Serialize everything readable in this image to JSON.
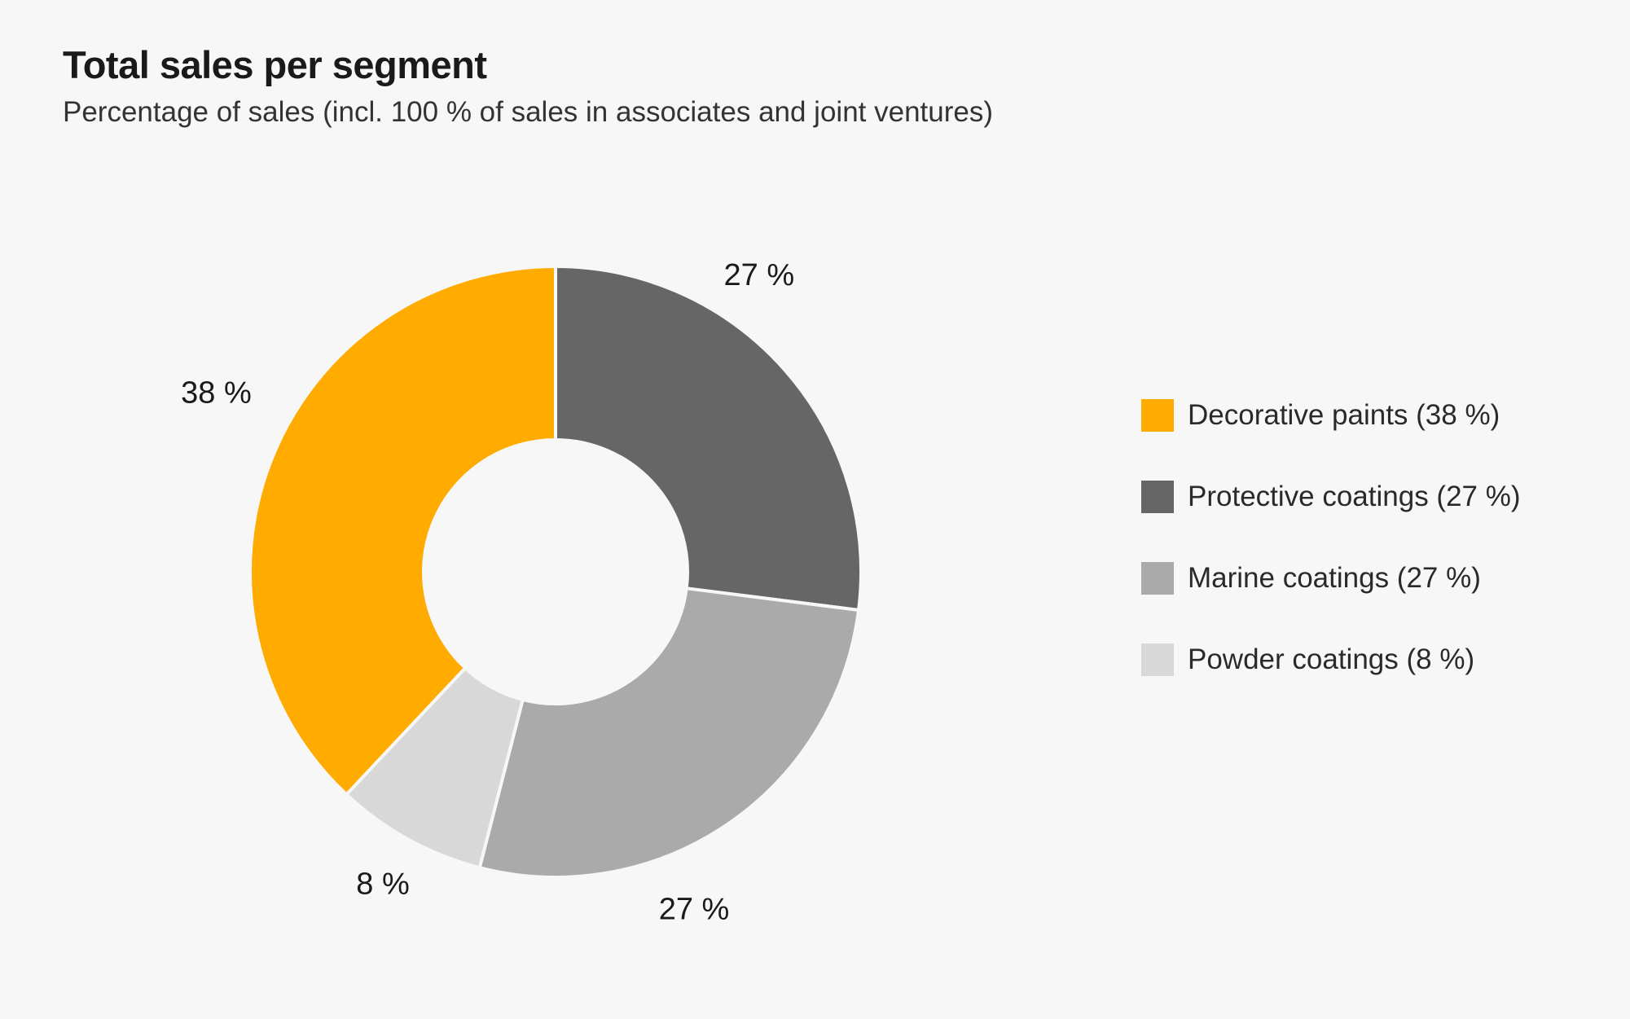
{
  "title": "Total sales per segment",
  "subtitle": "Percentage of sales (incl. 100 % of sales in associates and joint ventures)",
  "chart_data": {
    "type": "pie",
    "variant": "donut",
    "title": "Total sales per segment",
    "subtitle": "Percentage of sales (incl. 100 % of sales in associates and joint ventures)",
    "unit": "%",
    "legend_position": "right",
    "slices": [
      {
        "name": "Decorative paints",
        "value": 38,
        "label": "38 %",
        "legend": "Decorative paints (38 %)",
        "color": "#ffab00"
      },
      {
        "name": "Protective coatings",
        "value": 27,
        "label": "27 %",
        "legend": "Protective coatings (27 %)",
        "color": "#666666"
      },
      {
        "name": "Marine coatings",
        "value": 27,
        "label": "27 %",
        "legend": "Marine coatings (27 %)",
        "color": "#aaaaaa"
      },
      {
        "name": "Powder coatings",
        "value": 8,
        "label": "8 %",
        "legend": "Powder coatings (8 %)",
        "color": "#d8d8d8"
      }
    ],
    "draw_order": [
      "Protective coatings",
      "Marine coatings",
      "Powder coatings",
      "Decorative paints"
    ]
  }
}
